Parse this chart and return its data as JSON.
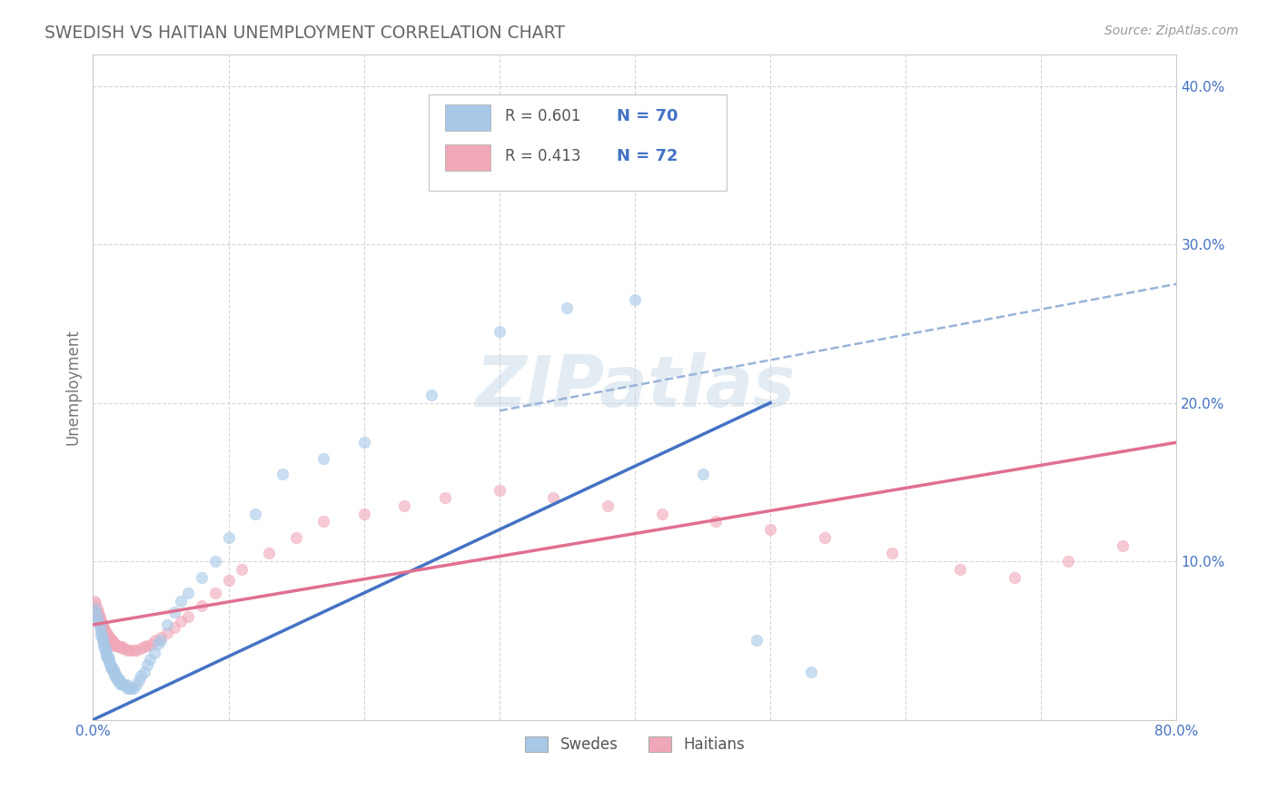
{
  "title": "SWEDISH VS HAITIAN UNEMPLOYMENT CORRELATION CHART",
  "source": "Source: ZipAtlas.com",
  "ylabel": "Unemployment",
  "xlim": [
    0.0,
    0.8
  ],
  "ylim": [
    0.0,
    0.42
  ],
  "xticks": [
    0.0,
    0.1,
    0.2,
    0.3,
    0.4,
    0.5,
    0.6,
    0.7,
    0.8
  ],
  "xticklabels": [
    "0.0%",
    "",
    "",
    "",
    "",
    "",
    "",
    "",
    "80.0%"
  ],
  "yticks": [
    0.0,
    0.1,
    0.2,
    0.3,
    0.4
  ],
  "yticklabels_right": [
    "",
    "10.0%",
    "20.0%",
    "30.0%",
    "40.0%"
  ],
  "swedes_color": "#a8c8e8",
  "haitians_color": "#f0a8b8",
  "swedes_line_color": "#4472c4",
  "haitians_line_color": "#e07090",
  "dashed_line_color": "#99b4d8",
  "R_swedes": 0.601,
  "N_swedes": 70,
  "R_haitians": 0.413,
  "N_haitians": 72,
  "legend_swedes": "Swedes",
  "legend_haitians": "Haitians",
  "watermark_text": "ZIPatlas",
  "background_color": "#ffffff",
  "grid_color": "#cccccc",
  "tick_label_color": "#4472c4",
  "swedes_scatter_x": [
    0.001,
    0.002,
    0.003,
    0.004,
    0.005,
    0.005,
    0.006,
    0.006,
    0.007,
    0.007,
    0.008,
    0.008,
    0.009,
    0.009,
    0.01,
    0.01,
    0.011,
    0.011,
    0.012,
    0.012,
    0.013,
    0.013,
    0.014,
    0.014,
    0.015,
    0.015,
    0.016,
    0.016,
    0.017,
    0.017,
    0.018,
    0.018,
    0.019,
    0.02,
    0.02,
    0.021,
    0.022,
    0.023,
    0.025,
    0.025,
    0.027,
    0.028,
    0.03,
    0.032,
    0.034,
    0.035,
    0.038,
    0.04,
    0.042,
    0.045,
    0.048,
    0.05,
    0.055,
    0.06,
    0.065,
    0.07,
    0.08,
    0.09,
    0.1,
    0.12,
    0.14,
    0.17,
    0.2,
    0.25,
    0.3,
    0.35,
    0.4,
    0.45,
    0.49,
    0.53
  ],
  "swedes_scatter_y": [
    0.07,
    0.068,
    0.065,
    0.062,
    0.06,
    0.058,
    0.055,
    0.053,
    0.052,
    0.05,
    0.048,
    0.046,
    0.045,
    0.043,
    0.042,
    0.04,
    0.04,
    0.038,
    0.038,
    0.036,
    0.035,
    0.033,
    0.033,
    0.032,
    0.032,
    0.03,
    0.03,
    0.028,
    0.028,
    0.027,
    0.027,
    0.025,
    0.025,
    0.025,
    0.023,
    0.023,
    0.022,
    0.022,
    0.022,
    0.02,
    0.02,
    0.02,
    0.02,
    0.022,
    0.025,
    0.028,
    0.03,
    0.035,
    0.038,
    0.042,
    0.048,
    0.05,
    0.06,
    0.068,
    0.075,
    0.08,
    0.09,
    0.1,
    0.115,
    0.13,
    0.155,
    0.165,
    0.175,
    0.205,
    0.245,
    0.26,
    0.265,
    0.155,
    0.05,
    0.03
  ],
  "haitians_scatter_x": [
    0.001,
    0.002,
    0.003,
    0.004,
    0.004,
    0.005,
    0.005,
    0.006,
    0.006,
    0.007,
    0.007,
    0.008,
    0.008,
    0.009,
    0.009,
    0.01,
    0.01,
    0.011,
    0.011,
    0.012,
    0.012,
    0.013,
    0.013,
    0.014,
    0.014,
    0.015,
    0.015,
    0.016,
    0.016,
    0.017,
    0.018,
    0.019,
    0.02,
    0.021,
    0.022,
    0.023,
    0.025,
    0.027,
    0.03,
    0.032,
    0.035,
    0.038,
    0.04,
    0.043,
    0.046,
    0.05,
    0.055,
    0.06,
    0.065,
    0.07,
    0.08,
    0.09,
    0.1,
    0.11,
    0.13,
    0.15,
    0.17,
    0.2,
    0.23,
    0.26,
    0.3,
    0.34,
    0.38,
    0.42,
    0.46,
    0.5,
    0.54,
    0.59,
    0.64,
    0.68,
    0.72,
    0.76
  ],
  "haitians_scatter_y": [
    0.075,
    0.073,
    0.07,
    0.068,
    0.066,
    0.065,
    0.063,
    0.063,
    0.061,
    0.06,
    0.059,
    0.058,
    0.057,
    0.056,
    0.055,
    0.055,
    0.054,
    0.053,
    0.053,
    0.052,
    0.051,
    0.051,
    0.05,
    0.05,
    0.049,
    0.049,
    0.048,
    0.048,
    0.047,
    0.047,
    0.047,
    0.046,
    0.046,
    0.046,
    0.045,
    0.045,
    0.044,
    0.044,
    0.044,
    0.044,
    0.045,
    0.046,
    0.047,
    0.048,
    0.05,
    0.052,
    0.055,
    0.058,
    0.062,
    0.065,
    0.072,
    0.08,
    0.088,
    0.095,
    0.105,
    0.115,
    0.125,
    0.13,
    0.135,
    0.14,
    0.145,
    0.14,
    0.135,
    0.13,
    0.125,
    0.12,
    0.115,
    0.105,
    0.095,
    0.09,
    0.1,
    0.11
  ],
  "swedes_line_x": [
    0.0,
    0.5
  ],
  "swedes_line_y": [
    0.0,
    0.2
  ],
  "haitians_line_x": [
    0.0,
    0.8
  ],
  "haitians_line_y": [
    0.06,
    0.175
  ],
  "dashed_line_x": [
    0.3,
    0.8
  ],
  "dashed_line_y": [
    0.195,
    0.275
  ]
}
